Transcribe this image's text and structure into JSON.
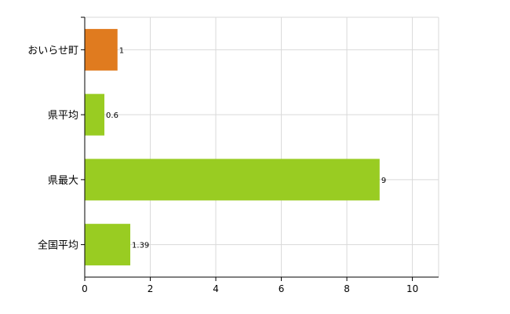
{
  "chart_data": {
    "type": "bar",
    "orientation": "horizontal",
    "categories": [
      "おいらせ町",
      "県平均",
      "県最大",
      "全国平均"
    ],
    "values": [
      1,
      0.6,
      9,
      1.39
    ],
    "data_labels": [
      "1",
      "0.6",
      "9",
      "1.39"
    ],
    "bar_colors": [
      "#e07b1f",
      "#99cc22",
      "#99cc22",
      "#99cc22"
    ],
    "xlim": [
      0,
      10.8
    ],
    "xticks": [
      0,
      2,
      4,
      6,
      8,
      10
    ],
    "xtick_labels": [
      "0",
      "2",
      "4",
      "6",
      "8",
      "10"
    ],
    "grid": true,
    "legend": "none",
    "title": "",
    "xlabel": "",
    "ylabel": ""
  }
}
